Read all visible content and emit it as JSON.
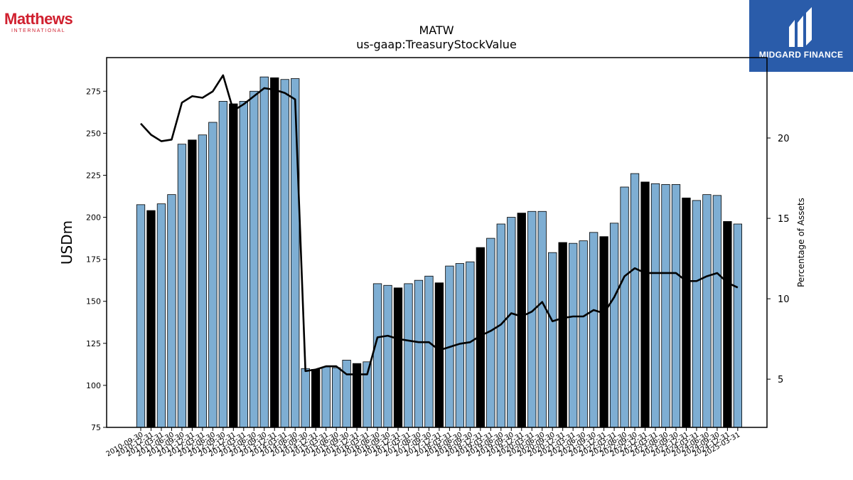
{
  "logos": {
    "left_brand": "Matthews",
    "left_sub": "INTERNATIONAL",
    "right_text": "MIDGARD FINANCE"
  },
  "chart_data": {
    "type": "bar",
    "title": "MATW",
    "subtitle": "us-gaap:TreasuryStockValue",
    "ylabel": "USDm",
    "y2label": "Percentage of Assets",
    "ylim": [
      75,
      295
    ],
    "y2lim": [
      2,
      25
    ],
    "yticks": [
      75,
      100,
      125,
      150,
      175,
      200,
      225,
      250,
      275
    ],
    "y2ticks": [
      5,
      10,
      15,
      20
    ],
    "colors": {
      "bar": "#7eaed3",
      "bar_highlight": "#000000",
      "line": "#000000"
    },
    "categories": [
      "2010-09-30",
      "2010-12-31",
      "2011-03-31",
      "2011-06-30",
      "2011-09-30",
      "2011-12-31",
      "2012-03-31",
      "2012-06-30",
      "2012-09-30",
      "2012-12-31",
      "2013-03-31",
      "2013-06-30",
      "2013-09-30",
      "2013-12-31",
      "2014-03-31",
      "2014-06-30",
      "2014-09-30",
      "2014-12-31",
      "2015-03-31",
      "2015-06-30",
      "2015-09-30",
      "2015-12-31",
      "2016-03-31",
      "2016-06-30",
      "2016-09-30",
      "2016-12-31",
      "2017-03-31",
      "2017-06-30",
      "2017-09-30",
      "2017-12-31",
      "2018-03-31",
      "2018-06-30",
      "2018-09-30",
      "2018-12-31",
      "2019-03-31",
      "2019-06-30",
      "2019-09-30",
      "2019-12-31",
      "2020-03-31",
      "2020-06-30",
      "2020-09-30",
      "2020-12-31",
      "2021-03-31",
      "2021-06-30",
      "2021-09-30",
      "2021-12-31",
      "2022-03-31",
      "2022-06-30",
      "2022-09-30",
      "2022-12-31",
      "2023-03-31",
      "2023-06-30",
      "2023-09-30",
      "2023-12-31",
      "2024-03-31",
      "2024-06-30",
      "2024-09-30",
      "2024-12-31",
      "2025-03-31"
    ],
    "xtick_labels": [
      "2010-09-30",
      "2010-12-31",
      "2011-03-31",
      "2011-06-30",
      "2011-09-30",
      "2011-12-31",
      "2012-03-31",
      "2012-06-30",
      "2012-09-30",
      "2012-12-31",
      "2013-03-31",
      "2013-06-30",
      "2013-09-30",
      "2013-12-31",
      "2014-03-31",
      "2014-06-30",
      "2014-09-30",
      "2014-12-31",
      "2015-03-31",
      "2015-06-30",
      "2015-09-30",
      "2015-12-31",
      "2016-03-31",
      "2016-06-30",
      "2016-09-30",
      "2016-12-31",
      "2017-03-31",
      "2017-06-30",
      "2017-09-30",
      "2017-12-31",
      "2018-03-31",
      "2018-06-30",
      "2018-09-30",
      "2018-12-31",
      "2019-03-31",
      "2019-06-30",
      "2019-09-30",
      "2019-12-31",
      "2020-03-31",
      "2020-06-30",
      "2020-09-30",
      "2020-12-31",
      "2021-03-31",
      "2021-06-30",
      "2021-09-30",
      "2021-12-31",
      "2022-03-31",
      "2022-06-30",
      "2022-09-30",
      "2022-12-31",
      "2023-03-31",
      "2023-06-30",
      "2023-09-30",
      "2023-12-31",
      "2024-03-31",
      "2024-06-30",
      "2024-09-30",
      "2024-12-31",
      "2025-03-31"
    ],
    "values": [
      207.5,
      204,
      208,
      213.5,
      243.5,
      246,
      249,
      256.5,
      269,
      267.5,
      269,
      275,
      283.5,
      283,
      282,
      282.5,
      110,
      109.5,
      111,
      110.5,
      115,
      113,
      114,
      160.5,
      159.5,
      158,
      160.5,
      162.5,
      165,
      161,
      171,
      172.5,
      173.5,
      182,
      187.5,
      196,
      200,
      202.5,
      203.5,
      203.5,
      179,
      185,
      184.5,
      186,
      191,
      188.5,
      196.5,
      218,
      226,
      221,
      220,
      219.5,
      219.5,
      211.5,
      210,
      213.5,
      213,
      197.5,
      196
    ],
    "highlight": [
      false,
      true,
      false,
      false,
      false,
      true,
      false,
      false,
      false,
      true,
      false,
      false,
      false,
      true,
      false,
      false,
      false,
      true,
      false,
      false,
      false,
      true,
      false,
      false,
      false,
      true,
      false,
      false,
      false,
      true,
      false,
      false,
      false,
      true,
      false,
      false,
      false,
      true,
      false,
      false,
      false,
      true,
      false,
      false,
      false,
      true,
      false,
      false,
      false,
      true,
      false,
      false,
      false,
      true,
      false,
      false,
      false,
      true,
      false
    ],
    "pct_of_assets": [
      20.9,
      20.2,
      19.8,
      19.9,
      22.2,
      22.6,
      22.5,
      22.9,
      23.9,
      21.7,
      22.1,
      22.6,
      23.1,
      23.0,
      22.8,
      22.4,
      5.5,
      5.6,
      5.8,
      5.8,
      5.3,
      5.3,
      5.3,
      7.6,
      7.7,
      7.5,
      7.4,
      7.3,
      7.3,
      6.8,
      7.0,
      7.2,
      7.3,
      7.7,
      8.0,
      8.4,
      9.1,
      8.9,
      9.2,
      9.8,
      8.6,
      8.8,
      8.9,
      8.9,
      9.3,
      9.1,
      10.1,
      11.4,
      11.9,
      11.6,
      11.6,
      11.6,
      11.6,
      11.1,
      11.1,
      11.4,
      11.6,
      11.0,
      10.7
    ]
  }
}
